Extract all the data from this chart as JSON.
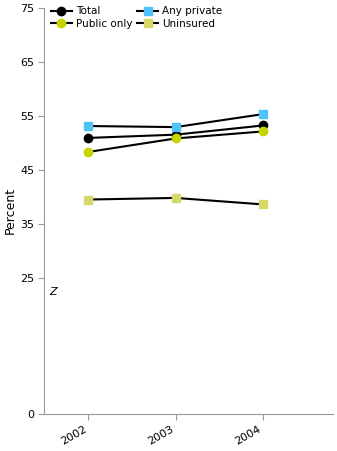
{
  "years": [
    2002,
    2003,
    2004
  ],
  "series": [
    {
      "label": "Total",
      "values": [
        51.0,
        51.6,
        53.3
      ],
      "color": "#000000",
      "marker": "o",
      "marker_facecolor": "#000000",
      "marker_edgecolor": "#000000",
      "linestyle": "-",
      "linewidth": 1.5
    },
    {
      "label": "Any private",
      "values": [
        53.2,
        53.0,
        55.4
      ],
      "color": "#000000",
      "marker": "s",
      "marker_facecolor": "#4fc3f7",
      "marker_edgecolor": "#4fc3f7",
      "linestyle": "-",
      "linewidth": 1.5
    },
    {
      "label": "Public only",
      "values": [
        48.4,
        50.9,
        52.2
      ],
      "color": "#000000",
      "marker": "o",
      "marker_facecolor": "#c8d400",
      "marker_edgecolor": "#c8d400",
      "linestyle": "-",
      "linewidth": 1.5
    },
    {
      "label": "Uninsured",
      "values": [
        39.6,
        39.9,
        38.7
      ],
      "color": "#000000",
      "marker": "s",
      "marker_facecolor": "#d4d96a",
      "marker_edgecolor": "#d4d96a",
      "linestyle": "-",
      "linewidth": 1.5
    }
  ],
  "ylabel": "Percent",
  "ylim": [
    0,
    75
  ],
  "yticks": [
    0,
    25,
    35,
    45,
    55,
    65,
    75
  ],
  "ytick_labels": [
    "0",
    "25",
    "35",
    "45",
    "55",
    "65",
    "75"
  ],
  "xlim": [
    2001.5,
    2004.8
  ],
  "xticks": [
    2002,
    2003,
    2004
  ],
  "background_color": "#ffffff",
  "z_label": "Z",
  "legend_order": [
    0,
    2,
    1,
    3
  ],
  "legend_labels_ordered": [
    "Total",
    "Public only",
    "Any private",
    "Uninsured"
  ]
}
